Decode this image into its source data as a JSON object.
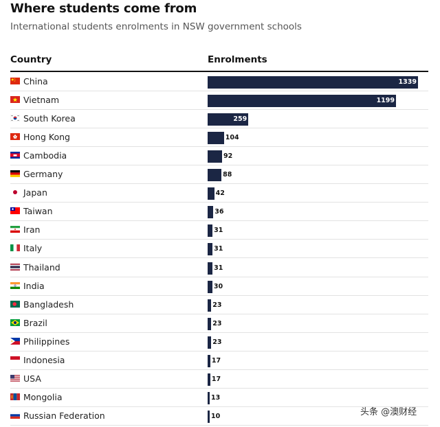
{
  "header": {
    "title": "Where students come from",
    "subtitle": "International students enrolments in NSW government schools"
  },
  "columns": {
    "country": "Country",
    "enrolments": "Enrolments"
  },
  "watermark": "头条 @澳财经",
  "colors": {
    "bar": "#1b2644",
    "rule": "#121212",
    "divider": "#e2e2e2"
  },
  "chart_data": {
    "type": "bar",
    "orientation": "horizontal",
    "title": "Where students come from",
    "subtitle": "International students enrolments in NSW government schools",
    "xlabel": "",
    "ylabel": "",
    "categories": [
      "China",
      "Vietnam",
      "South Korea",
      "Hong Kong",
      "Cambodia",
      "Germany",
      "Japan",
      "Taiwan",
      "Iran",
      "Italy",
      "Thailand",
      "India",
      "Bangladesh",
      "Brazil",
      "Philippines",
      "Indonesia",
      "USA",
      "Mongolia",
      "Russian Federation"
    ],
    "values": [
      1339,
      1199,
      259,
      104,
      92,
      88,
      42,
      36,
      31,
      31,
      31,
      30,
      23,
      23,
      23,
      17,
      17,
      13,
      10
    ],
    "flag_icons": [
      "china-flag-icon",
      "vietnam-flag-icon",
      "south-korea-flag-icon",
      "hong-kong-flag-icon",
      "cambodia-flag-icon",
      "germany-flag-icon",
      "japan-flag-icon",
      "taiwan-flag-icon",
      "iran-flag-icon",
      "italy-flag-icon",
      "thailand-flag-icon",
      "india-flag-icon",
      "bangladesh-flag-icon",
      "brazil-flag-icon",
      "philippines-flag-icon",
      "indonesia-flag-icon",
      "usa-flag-icon",
      "mongolia-flag-icon",
      "russia-flag-icon"
    ],
    "xlim": [
      0,
      1339
    ],
    "grid": false,
    "legend": "none"
  }
}
